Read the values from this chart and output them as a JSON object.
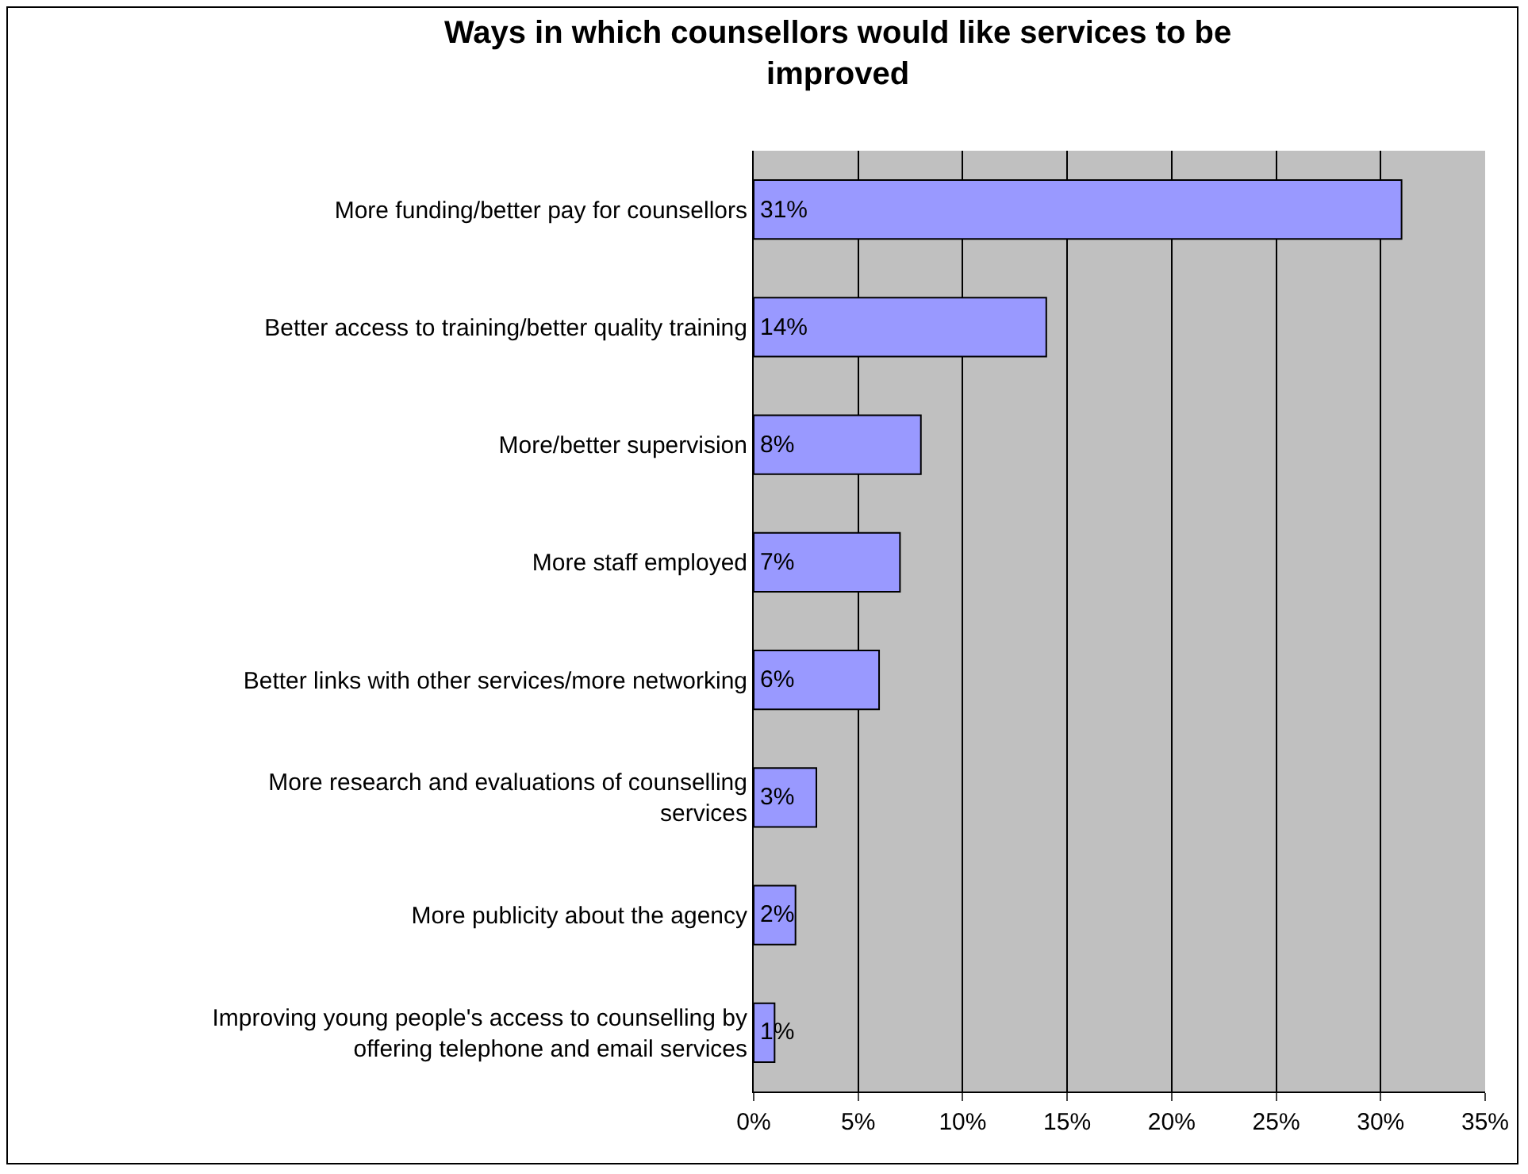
{
  "chart_data": {
    "type": "bar",
    "orientation": "horizontal",
    "title": "Ways in which counsellors would like services to be improved",
    "categories": [
      "More funding/better pay for counsellors",
      "Better access to training/better quality training",
      "More/better supervision",
      "More staff employed",
      "Better links with other services/more networking",
      "More research and evaluations of counselling services",
      "More publicity about the agency",
      "Improving young people's access to counselling by offering telephone and email services"
    ],
    "values": [
      31,
      14,
      8,
      7,
      6,
      3,
      2,
      1
    ],
    "value_labels": [
      "31%",
      "14%",
      "8%",
      "7%",
      "6%",
      "3%",
      "2%",
      "1%"
    ],
    "color": "#9999ff",
    "xlim": [
      0,
      35
    ],
    "xticks": [
      {
        "value": 0,
        "label": "0%"
      },
      {
        "value": 5,
        "label": "5%"
      },
      {
        "value": 10,
        "label": "10%"
      },
      {
        "value": 15,
        "label": "15%"
      },
      {
        "value": 20,
        "label": "20%"
      },
      {
        "value": 25,
        "label": "25%"
      },
      {
        "value": 30,
        "label": "30%"
      },
      {
        "value": 35,
        "label": "35%"
      }
    ],
    "grid": "x"
  }
}
